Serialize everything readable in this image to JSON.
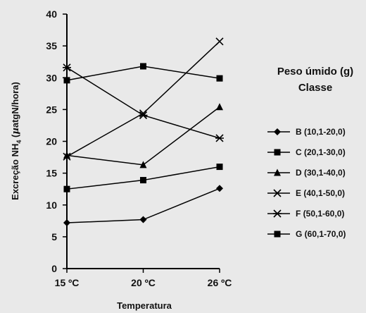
{
  "chart_data": {
    "type": "line",
    "title": "",
    "xlabel": "Temperatura",
    "ylabel": "Excreção NH4 (µatgN/hora)",
    "ylabel_parts": {
      "before": "Excreção NH",
      "sub": "4",
      "after": " (",
      "mu": "µ",
      "unit": "atgN/hora)"
    },
    "categories": [
      "15 ºC",
      "20 ºC",
      "26 ºC"
    ],
    "ylim": [
      0,
      40
    ],
    "yticks": [
      "0",
      "5",
      "10",
      "15",
      "20",
      "25",
      "30",
      "35",
      "40"
    ],
    "grid": false,
    "legend_placement": "right",
    "legend_title": [
      "Peso úmido (g)",
      "Classe"
    ],
    "series": [
      {
        "name": "B (10,1-20,0)",
        "marker": "diamond",
        "values": [
          7.2,
          7.7,
          12.6
        ]
      },
      {
        "name": "C (20,1-30,0)",
        "marker": "square",
        "values": [
          12.5,
          13.9,
          16.0
        ]
      },
      {
        "name": "D (30,1-40,0)",
        "marker": "triangle",
        "values": [
          17.8,
          16.3,
          25.4
        ]
      },
      {
        "name": "E (40,1-50,0)",
        "marker": "x",
        "values": [
          17.6,
          24.4,
          35.7
        ]
      },
      {
        "name": "F (50,1-60,0)",
        "marker": "star",
        "values": [
          31.6,
          24.1,
          20.5
        ]
      },
      {
        "name": "G (60,1-70,0)",
        "marker": "square",
        "values": [
          29.6,
          31.8,
          29.9
        ]
      }
    ]
  }
}
